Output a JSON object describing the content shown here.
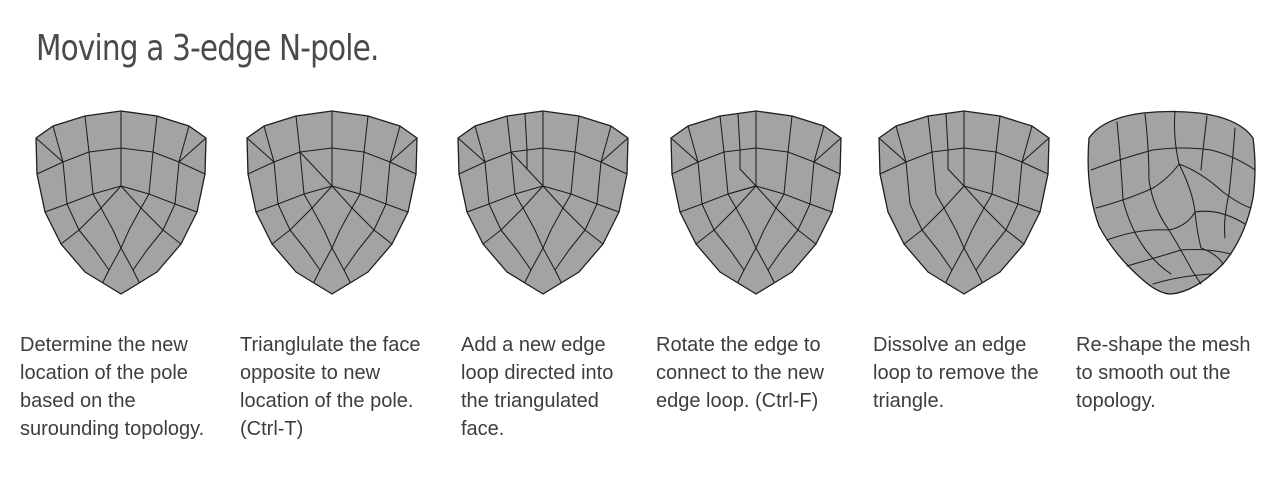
{
  "title": "Moving a 3-edge N-pole.",
  "steps": [
    {
      "caption": "Determine the new\nlocation of the pole\nbased on the\nsurounding topology."
    },
    {
      "caption": "Trianglulate the face\nopposite to new\nlocation of the pole.\n(Ctrl-T)"
    },
    {
      "caption": "Add a new edge\nloop directed into\nthe triangulated\nface."
    },
    {
      "caption": "Rotate the edge to\nconnect to the new\nedge loop. (Ctrl-F)"
    },
    {
      "caption": "Dissolve an edge\nloop to remove the\ntriangle."
    },
    {
      "caption": "Re-shape the mesh\nto smooth out the\ntopology."
    }
  ]
}
